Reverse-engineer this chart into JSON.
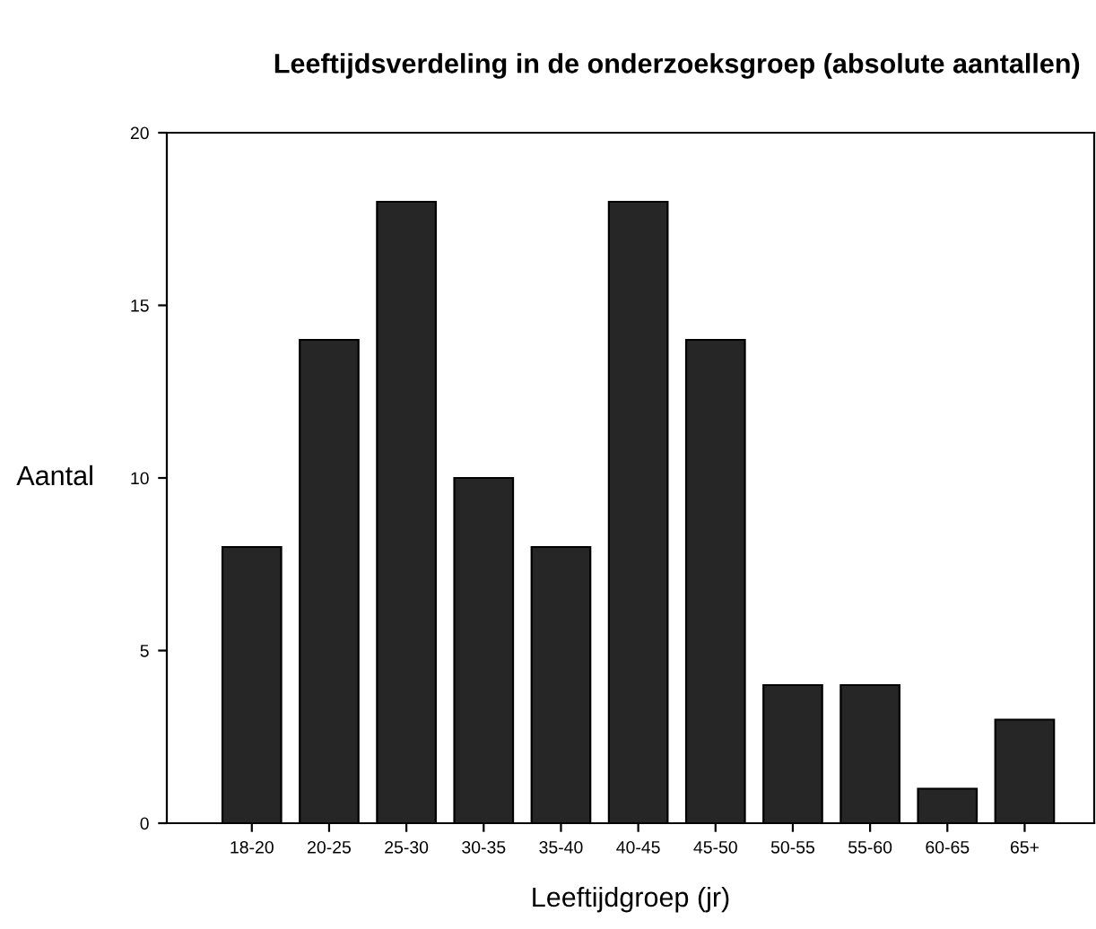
{
  "chart_data": {
    "type": "bar",
    "title": "Leeftijdsverdeling in de onderzoeksgroep (absolute aantallen)",
    "xlabel": "Leeftijdgroep (jr)",
    "ylabel": "Aantal",
    "categories": [
      "18-20",
      "20-25",
      "25-30",
      "30-35",
      "35-40",
      "40-45",
      "45-50",
      "50-55",
      "55-60",
      "60-65",
      "65+"
    ],
    "values": [
      8,
      14,
      18,
      10,
      8,
      18,
      14,
      4,
      4,
      1,
      3
    ],
    "color": "#262626",
    "ylim": [
      0,
      20
    ],
    "yticks": [
      0,
      5,
      10,
      15,
      20
    ],
    "grid": false
  }
}
